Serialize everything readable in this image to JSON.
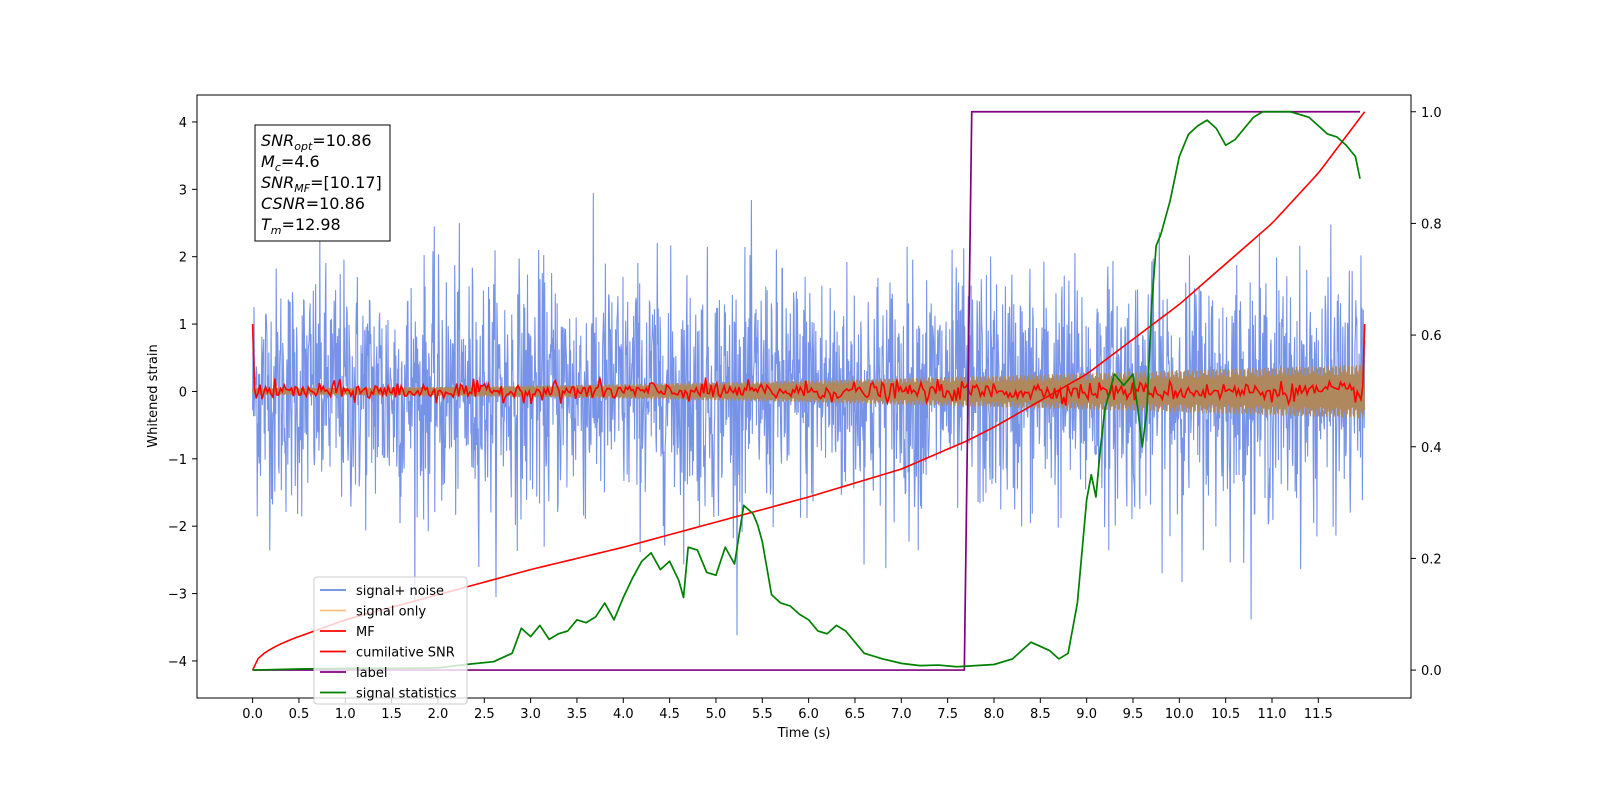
{
  "chart_data": {
    "type": "line",
    "xlabel": "Time (s)",
    "ylabel": "Whitened strain",
    "xlim": [
      -0.6,
      12.5
    ],
    "ylim": [
      -4.55,
      4.4
    ],
    "y2lim": [
      -0.05,
      1.03
    ],
    "x_ticks": [
      "0.0",
      "0.5",
      "1.0",
      "1.5",
      "2.0",
      "2.5",
      "3.0",
      "3.5",
      "4.0",
      "4.5",
      "5.0",
      "5.5",
      "6.0",
      "6.5",
      "7.0",
      "7.5",
      "8.0",
      "8.5",
      "9.0",
      "9.5",
      "10.0",
      "10.5",
      "11.0",
      "11.5"
    ],
    "y_ticks": [
      "4",
      "3",
      "2",
      "1",
      "0",
      "−1",
      "−2",
      "−3",
      "−4"
    ],
    "y2_ticks": [
      "1.0",
      "0.8",
      "0.6",
      "0.4",
      "0.2",
      "0.0"
    ],
    "colors": {
      "signal_noise": "#6b8ae6",
      "signal_only": "#b0885e",
      "signal_only_legend": "#ffbf7f",
      "mf": "#ff0000",
      "cumulative_snr": "#ff0000",
      "label": "#800080",
      "signal_statistics": "#008000"
    },
    "annotation": [
      {
        "sym": "SNR",
        "sub": "opt",
        "val": "=10.86"
      },
      {
        "sym": "M",
        "sub": "c",
        "val": "=4.6"
      },
      {
        "sym": "SNR",
        "sub": "MF",
        "val": "=[10.17]"
      },
      {
        "sym": "CSNR",
        "sub": "",
        "val": "=10.86"
      },
      {
        "sym": "T",
        "sub": "m",
        "val": "=12.98"
      }
    ],
    "legend": {
      "placement": "lower-left",
      "entries": [
        "signal+ noise",
        "signal only",
        "MF",
        "cumilative SNR",
        "label",
        "signal statistics"
      ]
    },
    "series": [
      {
        "key": "signal_noise",
        "name": "signal+ noise",
        "axis": "left",
        "x_range": [
          0,
          12
        ],
        "noise_std": 0.9
      },
      {
        "key": "signal_only",
        "name": "signal only",
        "axis": "left",
        "x_range": [
          0,
          12
        ],
        "amplitude_start": 0.05,
        "amplitude_end": 0.4
      },
      {
        "key": "mf",
        "name": "MF",
        "axis": "left",
        "x_range": [
          0,
          12
        ],
        "start": 1.0,
        "end": 1.0,
        "noise_std": 0.07
      },
      {
        "key": "cumulative_snr",
        "name": "cumilative SNR",
        "axis": "right",
        "x": [
          0,
          0.5,
          1,
          2,
          3,
          4,
          5,
          6,
          7,
          7.7,
          8,
          9,
          10,
          11,
          11.5,
          12
        ],
        "y": [
          0,
          0.06,
          0.09,
          0.135,
          0.18,
          0.22,
          0.265,
          0.31,
          0.36,
          0.41,
          0.435,
          0.53,
          0.655,
          0.8,
          0.89,
          1.0
        ]
      },
      {
        "key": "label",
        "name": "label",
        "axis": "right",
        "x": [
          0,
          7.68,
          7.76,
          11.95
        ],
        "y": [
          0,
          0,
          1,
          1
        ]
      },
      {
        "key": "signal_statistics",
        "name": "signal statistics",
        "axis": "right",
        "x": [
          0,
          0.5,
          1,
          1.5,
          2,
          2.3,
          2.6,
          2.8,
          2.9,
          3.0,
          3.1,
          3.2,
          3.3,
          3.4,
          3.5,
          3.6,
          3.7,
          3.8,
          3.9,
          4.0,
          4.1,
          4.2,
          4.3,
          4.4,
          4.5,
          4.6,
          4.65,
          4.7,
          4.8,
          4.9,
          5.0,
          5.1,
          5.2,
          5.3,
          5.4,
          5.45,
          5.5,
          5.6,
          5.7,
          5.8,
          5.9,
          6.0,
          6.1,
          6.2,
          6.3,
          6.4,
          6.5,
          6.6,
          6.8,
          7.0,
          7.2,
          7.4,
          7.6,
          7.8,
          8.0,
          8.2,
          8.4,
          8.6,
          8.7,
          8.8,
          8.9,
          9.0,
          9.05,
          9.1,
          9.15,
          9.2,
          9.3,
          9.4,
          9.5,
          9.55,
          9.6,
          9.65,
          9.7,
          9.75,
          9.8,
          9.9,
          10.0,
          10.1,
          10.2,
          10.3,
          10.4,
          10.5,
          10.6,
          10.7,
          10.8,
          10.9,
          11.0,
          11.2,
          11.4,
          11.6,
          11.7,
          11.8,
          11.9,
          11.95
        ],
        "y": [
          0,
          0.002,
          0.003,
          0.003,
          0.004,
          0.01,
          0.015,
          0.03,
          0.075,
          0.06,
          0.08,
          0.055,
          0.065,
          0.07,
          0.09,
          0.085,
          0.095,
          0.12,
          0.09,
          0.13,
          0.165,
          0.195,
          0.21,
          0.18,
          0.195,
          0.16,
          0.13,
          0.22,
          0.215,
          0.175,
          0.17,
          0.22,
          0.19,
          0.295,
          0.28,
          0.26,
          0.23,
          0.135,
          0.12,
          0.115,
          0.1,
          0.09,
          0.07,
          0.065,
          0.08,
          0.07,
          0.05,
          0.03,
          0.02,
          0.012,
          0.008,
          0.009,
          0.006,
          0.008,
          0.01,
          0.02,
          0.05,
          0.035,
          0.02,
          0.03,
          0.12,
          0.305,
          0.35,
          0.31,
          0.4,
          0.47,
          0.53,
          0.51,
          0.53,
          0.47,
          0.4,
          0.465,
          0.65,
          0.76,
          0.78,
          0.84,
          0.92,
          0.96,
          0.975,
          0.985,
          0.97,
          0.94,
          0.95,
          0.97,
          0.99,
          1.0,
          1.0,
          1.0,
          0.99,
          0.96,
          0.955,
          0.94,
          0.92,
          0.88
        ]
      }
    ]
  }
}
